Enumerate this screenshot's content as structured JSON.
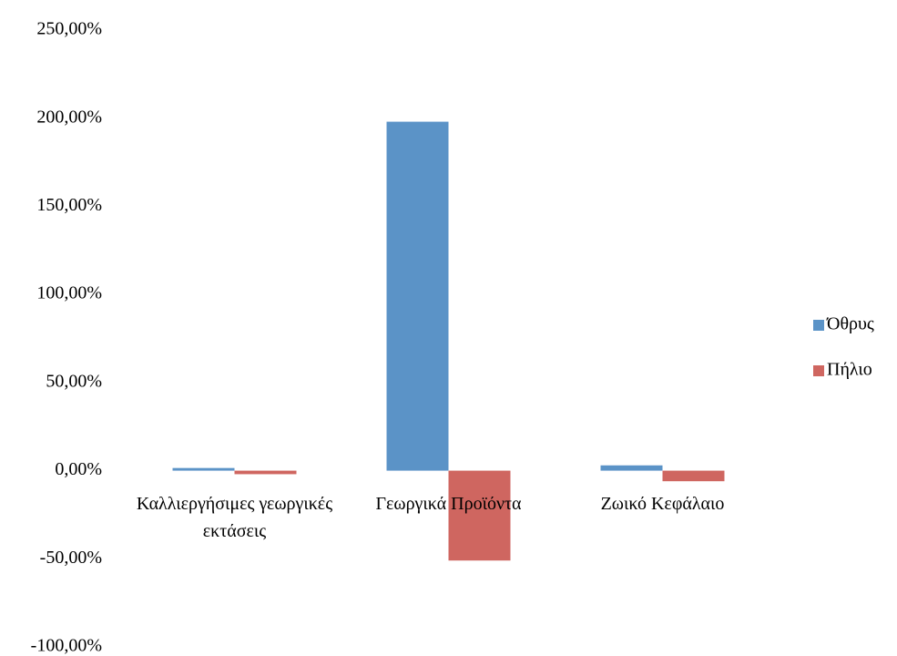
{
  "chart_data": {
    "type": "bar",
    "categories": [
      "Καλλιεργήσιμες γεωργικές εκτάσεις",
      "Γεωργικά Προϊόντα",
      "Ζωικό Κεφάλαιο"
    ],
    "series": [
      {
        "name": "Όθρυς",
        "color": "#5b93c7",
        "values": [
          1.5,
          198,
          3
        ]
      },
      {
        "name": "Πήλιο",
        "color": "#cf6660",
        "values": [
          -2,
          -51,
          -6
        ]
      }
    ],
    "ylim": [
      -100,
      250
    ],
    "yticks": [
      {
        "value": 250,
        "label": "250,00%"
      },
      {
        "value": 200,
        "label": "200,00%"
      },
      {
        "value": 150,
        "label": "150,00%"
      },
      {
        "value": 100,
        "label": "100,00%"
      },
      {
        "value": 50,
        "label": "50,00%"
      },
      {
        "value": 0,
        "label": "0,00%"
      },
      {
        "value": -50,
        "label": "-50,00%"
      },
      {
        "value": -100,
        "label": "-100,00%"
      }
    ],
    "grid": false,
    "legend": "right"
  }
}
